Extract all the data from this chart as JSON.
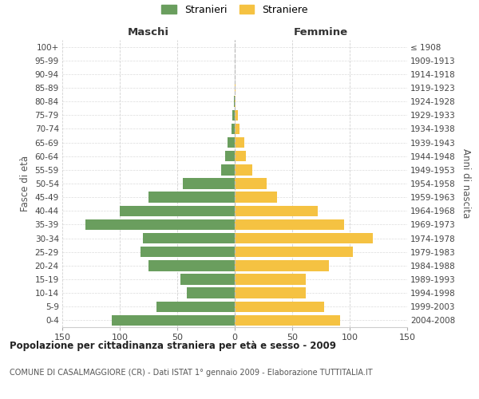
{
  "age_groups": [
    "0-4",
    "5-9",
    "10-14",
    "15-19",
    "20-24",
    "25-29",
    "30-34",
    "35-39",
    "40-44",
    "45-49",
    "50-54",
    "55-59",
    "60-64",
    "65-69",
    "70-74",
    "75-79",
    "80-84",
    "85-89",
    "90-94",
    "95-99",
    "100+"
  ],
  "birth_years": [
    "2004-2008",
    "1999-2003",
    "1994-1998",
    "1989-1993",
    "1984-1988",
    "1979-1983",
    "1974-1978",
    "1969-1973",
    "1964-1968",
    "1959-1963",
    "1954-1958",
    "1949-1953",
    "1944-1948",
    "1939-1943",
    "1934-1938",
    "1929-1933",
    "1924-1928",
    "1919-1923",
    "1914-1918",
    "1909-1913",
    "≤ 1908"
  ],
  "males": [
    107,
    68,
    42,
    47,
    75,
    82,
    80,
    130,
    100,
    75,
    45,
    12,
    8,
    6,
    3,
    2,
    1,
    0,
    0,
    0,
    0
  ],
  "females": [
    92,
    78,
    62,
    62,
    82,
    103,
    120,
    95,
    72,
    37,
    28,
    15,
    10,
    8,
    4,
    3,
    1,
    1,
    0,
    0,
    0
  ],
  "male_color": "#6a9e5e",
  "female_color": "#f5c242",
  "bg_color": "#ffffff",
  "grid_color": "#cccccc",
  "title_main": "Popolazione per cittadinanza straniera per età e sesso - 2009",
  "title_sub": "COMUNE DI CASALMAGGIORE (CR) - Dati ISTAT 1° gennaio 2009 - Elaborazione TUTTITALIA.IT",
  "xlabel_left": "Maschi",
  "xlabel_right": "Femmine",
  "ylabel_left": "Fasce di età",
  "ylabel_right": "Anni di nascita",
  "legend_male": "Stranieri",
  "legend_female": "Straniere",
  "xlim": 150
}
